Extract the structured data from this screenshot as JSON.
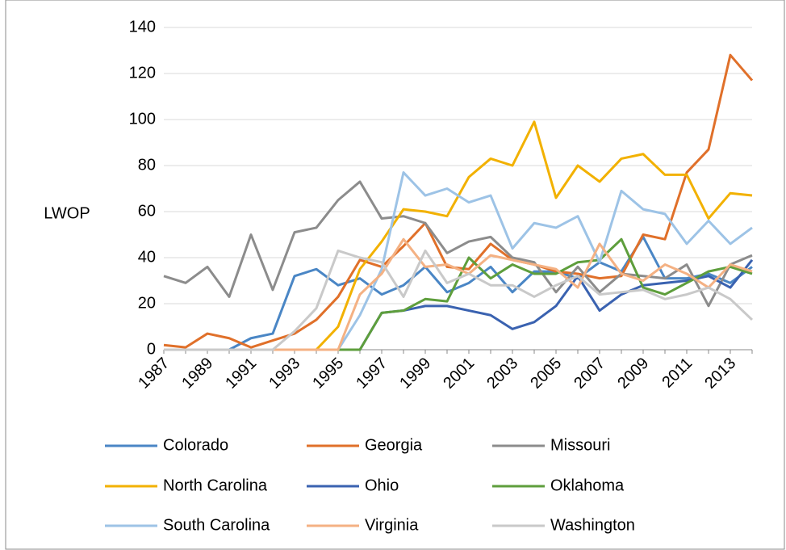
{
  "chart_data": {
    "type": "line",
    "y_label": "LWOP",
    "categories": [
      "1987",
      null,
      "1989",
      null,
      "1991",
      null,
      "1993",
      null,
      "1995",
      null,
      "1997",
      null,
      "1999",
      null,
      "2001",
      null,
      "2003",
      null,
      "2005",
      null,
      "2007",
      null,
      "2009",
      null,
      "2011",
      null,
      "2013",
      null
    ],
    "ylim": [
      0,
      140
    ],
    "yticks": [
      0,
      20,
      40,
      60,
      80,
      100,
      120,
      140
    ],
    "grid": true,
    "legend": "bottom",
    "series": [
      {
        "name": "Colorado",
        "color": "#4a86c5",
        "values": [
          0,
          0,
          0,
          0,
          5,
          7,
          32,
          35,
          28,
          31,
          24,
          28,
          36,
          25,
          29,
          36,
          25,
          34,
          34,
          31,
          38,
          34,
          49,
          31,
          31,
          33,
          29,
          36
        ]
      },
      {
        "name": "Georgia",
        "color": "#e0702a",
        "values": [
          2,
          1,
          7,
          5,
          1,
          4,
          7,
          13,
          23,
          39,
          36,
          45,
          55,
          36,
          35,
          46,
          39,
          37,
          34,
          33,
          31,
          32,
          50,
          48,
          77,
          87,
          128,
          117
        ]
      },
      {
        "name": "Missouri",
        "color": "#8c8c8c",
        "values": [
          32,
          29,
          36,
          23,
          50,
          26,
          51,
          53,
          65,
          73,
          57,
          58,
          55,
          42,
          47,
          49,
          40,
          38,
          25,
          36,
          25,
          33,
          32,
          31,
          37,
          19,
          37,
          41
        ]
      },
      {
        "name": "North Carolina",
        "color": "#f2b100",
        "values": [
          0,
          0,
          0,
          0,
          0,
          0,
          0,
          0,
          10,
          35,
          47,
          61,
          60,
          58,
          75,
          83,
          80,
          99,
          66,
          80,
          73,
          83,
          85,
          76,
          76,
          57,
          68,
          67
        ]
      },
      {
        "name": "Ohio",
        "color": "#3a62b0",
        "values": [
          0,
          0,
          0,
          0,
          0,
          0,
          0,
          0,
          0,
          0,
          16,
          17,
          19,
          19,
          17,
          15,
          9,
          12,
          19,
          32,
          17,
          24,
          28,
          29,
          30,
          32,
          27,
          39
        ]
      },
      {
        "name": "Oklahoma",
        "color": "#5e9e3c",
        "values": [
          0,
          0,
          0,
          0,
          0,
          0,
          0,
          0,
          0,
          0,
          16,
          17,
          22,
          21,
          40,
          31,
          37,
          33,
          33,
          38,
          39,
          48,
          27,
          24,
          29,
          34,
          36,
          33
        ]
      },
      {
        "name": "South Carolina",
        "color": "#9dc3e6",
        "values": [
          0,
          0,
          0,
          0,
          0,
          0,
          0,
          0,
          0,
          15,
          35,
          77,
          67,
          70,
          64,
          67,
          44,
          55,
          53,
          58,
          38,
          69,
          61,
          59,
          46,
          56,
          46,
          53
        ]
      },
      {
        "name": "Virginia",
        "color": "#f4b183",
        "values": [
          0,
          0,
          0,
          0,
          0,
          0,
          0,
          0,
          0,
          24,
          33,
          48,
          36,
          37,
          33,
          41,
          39,
          37,
          35,
          27,
          46,
          33,
          30,
          37,
          33,
          27,
          37,
          34
        ]
      },
      {
        "name": "Washington",
        "color": "#c9c9c9",
        "values": [
          0,
          0,
          0,
          0,
          0,
          0,
          8,
          18,
          43,
          40,
          38,
          23,
          43,
          29,
          33,
          28,
          28,
          23,
          28,
          32,
          24,
          25,
          26,
          22,
          24,
          27,
          22,
          13
        ]
      }
    ]
  }
}
